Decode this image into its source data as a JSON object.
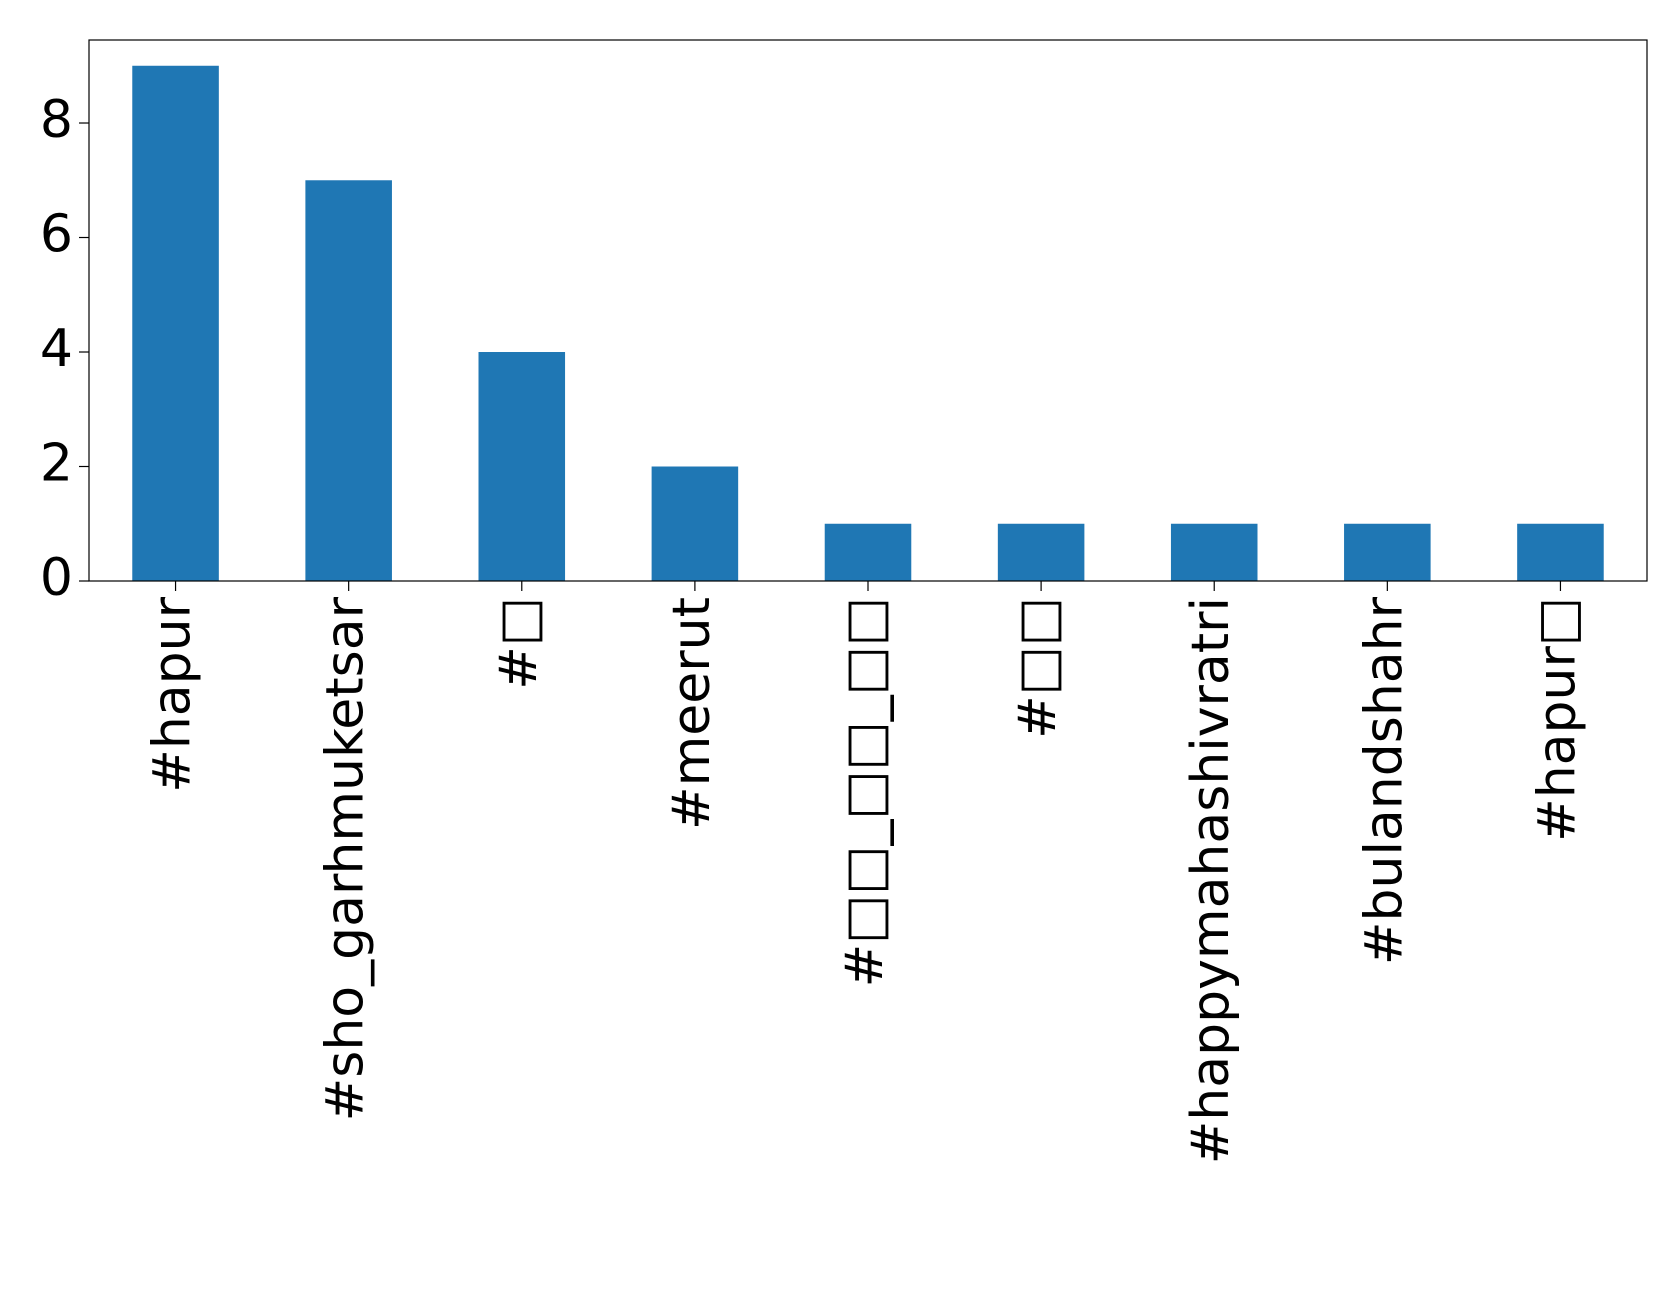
{
  "chart_data": {
    "type": "bar",
    "categories": [
      "#hapur",
      "#sho_garhmuketsar",
      "#□",
      "#meerut",
      "#□□_□□_□□",
      "#□□",
      "#happymahashivratri",
      "#bulandshahr",
      "#hapur□"
    ],
    "values": [
      9,
      7,
      4,
      2,
      1,
      1,
      1,
      1,
      1
    ],
    "color": "#1f77b4",
    "ylim": [
      0,
      9.45
    ],
    "yticks": [
      0,
      2,
      4,
      6,
      8
    ]
  }
}
